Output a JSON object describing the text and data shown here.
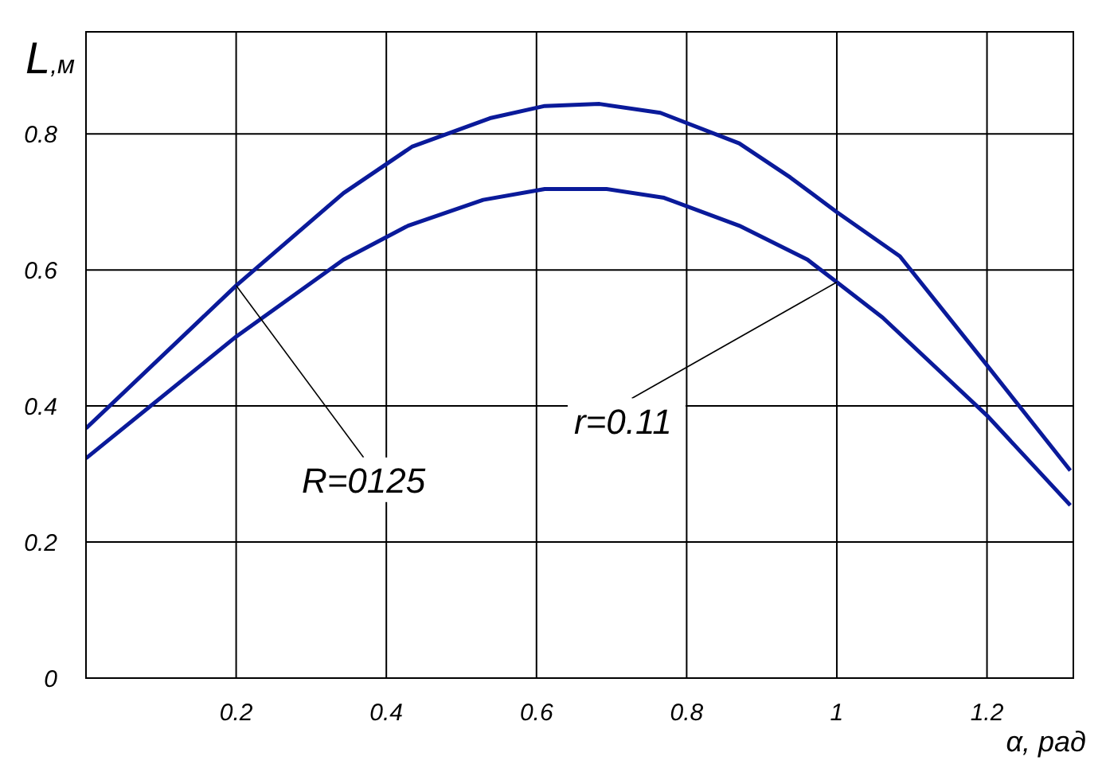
{
  "chart_data": {
    "type": "line",
    "xlabel": "α, рад",
    "ylabel": "L,м",
    "xlim": [
      0,
      1.315
    ],
    "ylim": [
      0,
      0.95
    ],
    "xticks": [
      0.2,
      0.4,
      0.6,
      0.8,
      1,
      1.2
    ],
    "yticks": [
      0,
      0.2,
      0.4,
      0.6,
      0.8
    ],
    "grid": true,
    "legend": false,
    "marker": "none",
    "line_style": "solid",
    "series": [
      {
        "color": "#0a1a9a",
        "x": [
          0,
          0.2,
          0.343,
          0.434,
          0.538,
          0.611,
          0.684,
          0.765,
          0.87,
          0.938,
          1.0,
          1.084,
          1.197,
          1.311
        ],
        "values": [
          0.367,
          0.577,
          0.713,
          0.781,
          0.823,
          0.841,
          0.844,
          0.831,
          0.786,
          0.736,
          0.685,
          0.62,
          0.464,
          0.305
        ]
      },
      {
        "color": "#0a1a9a",
        "x": [
          0,
          0.2,
          0.343,
          0.429,
          0.529,
          0.611,
          0.693,
          0.77,
          0.87,
          0.961,
          1.0,
          1.061,
          1.2,
          1.311
        ],
        "values": [
          0.323,
          0.502,
          0.615,
          0.665,
          0.703,
          0.719,
          0.719,
          0.706,
          0.665,
          0.615,
          0.582,
          0.53,
          0.386,
          0.254
        ]
      }
    ],
    "annotations": [
      {
        "text": "R=0125",
        "x": 0.2,
        "y": 0.577
      },
      {
        "text": "r=0.11",
        "x": 1.0,
        "y": 0.582
      }
    ]
  }
}
